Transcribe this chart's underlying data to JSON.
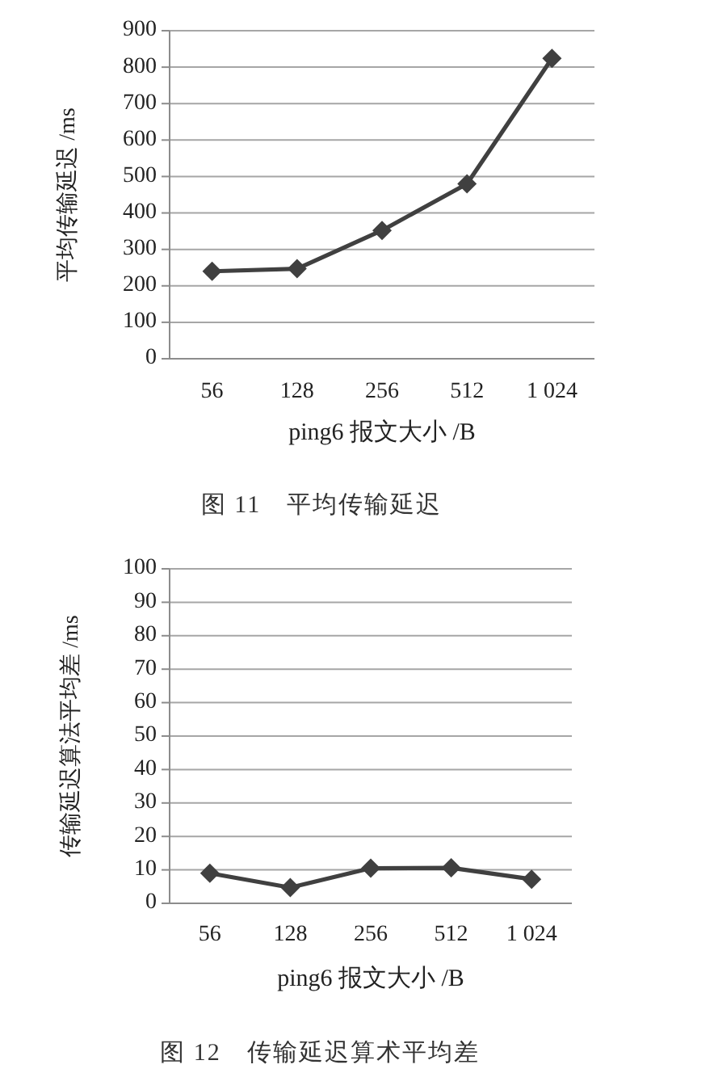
{
  "chart_data": [
    {
      "type": "line",
      "title": "图 11　平均传输延迟",
      "xlabel": "ping6 报文大小 /B",
      "ylabel": "平均传输延迟 /ms",
      "categories": [
        "56",
        "128",
        "256",
        "512",
        "1 024"
      ],
      "series": [
        {
          "color": "#404040",
          "values": [
            240,
            247,
            352,
            480,
            824
          ]
        }
      ],
      "ylim": [
        0,
        900
      ],
      "yticks": [
        0,
        100,
        200,
        300,
        400,
        500,
        600,
        700,
        800,
        900
      ],
      "grid": "y",
      "marker": "diamond",
      "line_style": "solid"
    },
    {
      "type": "line",
      "title": "图 12　传输延迟算术平均差",
      "xlabel": "ping6 报文大小 /B",
      "ylabel": "传输延迟算法平均差 /ms",
      "categories": [
        "56",
        "128",
        "256",
        "512",
        "1 024"
      ],
      "series": [
        {
          "color": "#404040",
          "values": [
            9.0,
            4.7,
            10.5,
            10.6,
            7.2
          ]
        }
      ],
      "ylim": [
        0,
        100
      ],
      "yticks": [
        0,
        10,
        20,
        30,
        40,
        50,
        60,
        70,
        80,
        90,
        100
      ],
      "grid": "y",
      "marker": "diamond",
      "line_style": "solid"
    }
  ]
}
